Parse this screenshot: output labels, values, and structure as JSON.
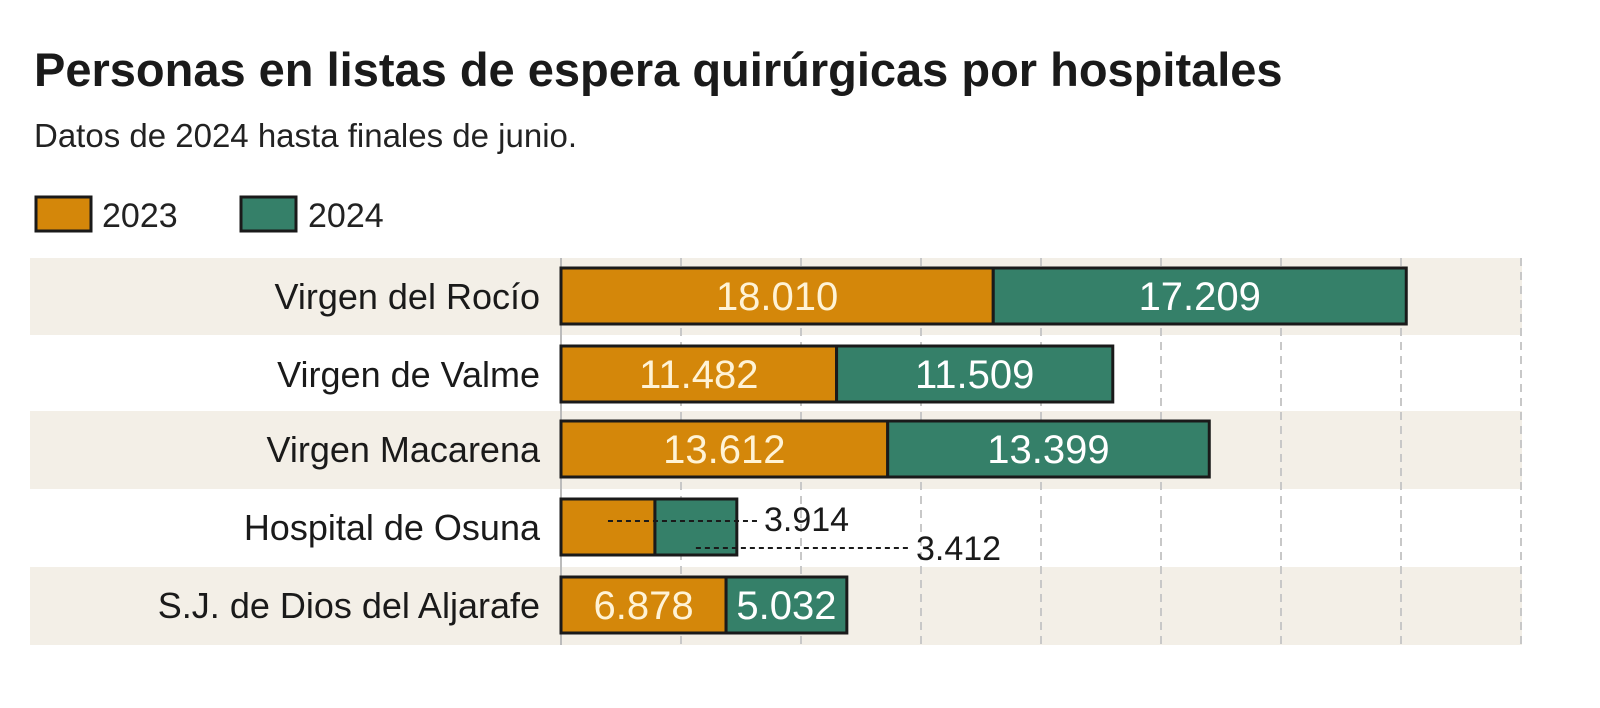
{
  "chart_data": {
    "type": "bar",
    "stacked": true,
    "orientation": "horizontal",
    "title": "Personas en listas de espera quirúrgicas por hospitales",
    "subtitle": "Datos de 2024 hasta finales de junio.",
    "categories": [
      "Virgen del Rocío",
      "Virgen de Valme",
      "Virgen Macarena",
      "Hospital de Osuna",
      "S.J. de Dios del Aljarafe"
    ],
    "series": [
      {
        "name": "2023",
        "color": "#D4870A",
        "values": [
          18010,
          11482,
          13612,
          3914,
          6878
        ],
        "labels": [
          "18.010",
          "11.482",
          "13.612",
          "3.914",
          "6.878"
        ]
      },
      {
        "name": "2024",
        "color": "#358069",
        "values": [
          17209,
          11509,
          13399,
          3412,
          5032
        ],
        "labels": [
          "17.209",
          "11.509",
          "13.399",
          "3.412",
          "5.032"
        ]
      }
    ],
    "xlim": [
      0,
      40000
    ],
    "grid": true,
    "legend": "top-left",
    "band_color": "#F3EFE7"
  }
}
